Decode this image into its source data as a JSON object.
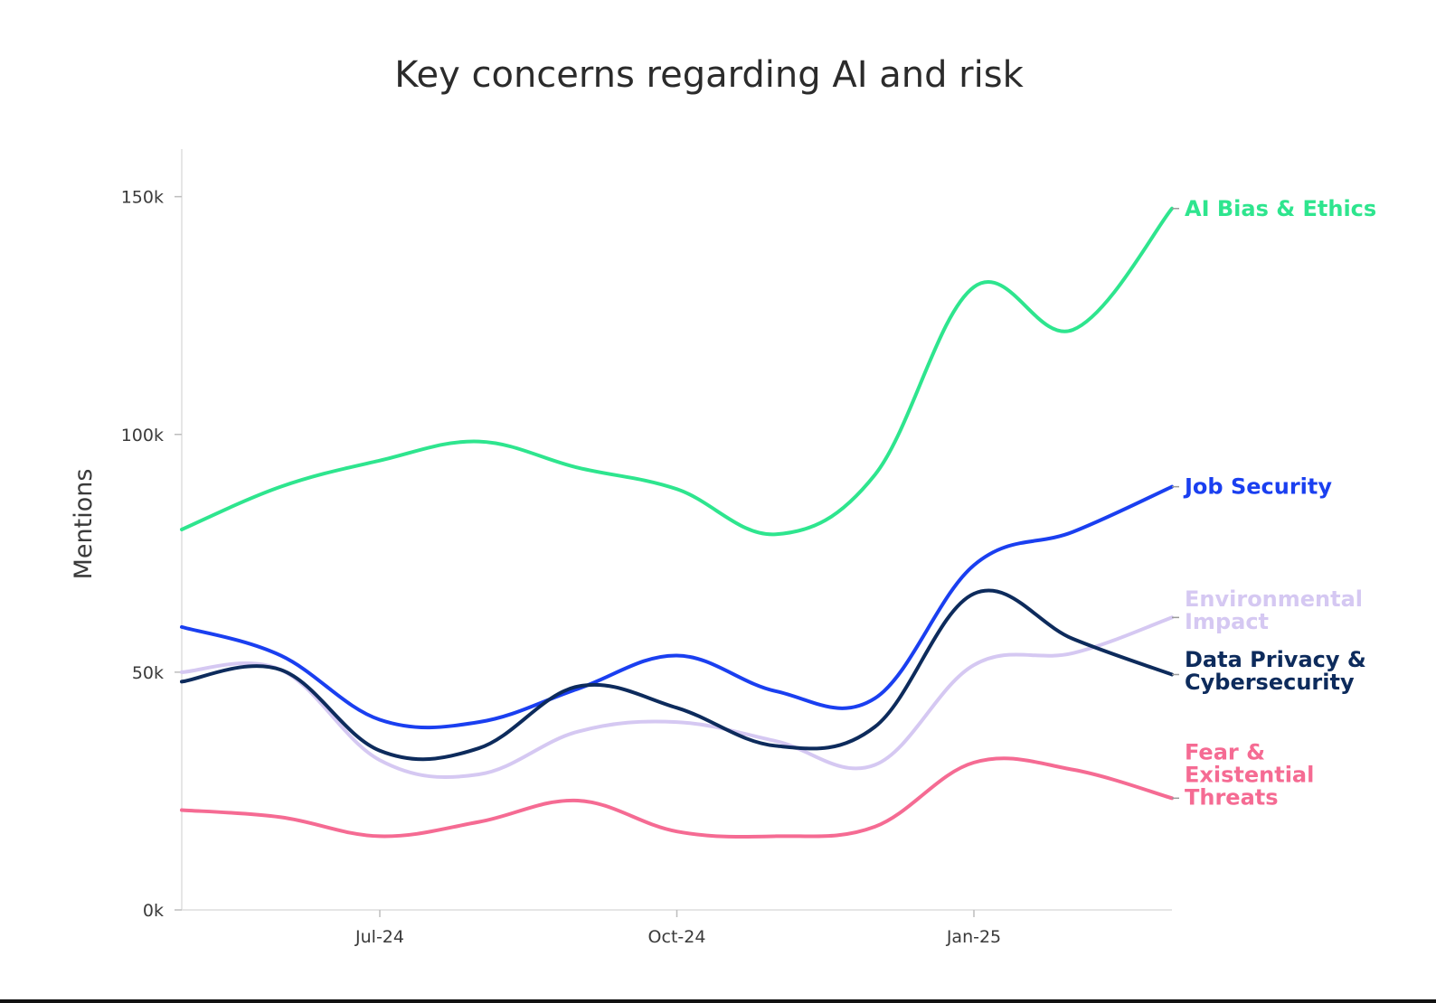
{
  "chart_data": {
    "type": "line",
    "title": "Key concerns regarding AI and risk",
    "xlabel": "",
    "ylabel": "Mentions",
    "ylim": [
      0,
      160000
    ],
    "y_ticks": [
      0,
      50000,
      100000,
      150000
    ],
    "y_tick_labels": [
      "0k",
      "50k",
      "100k",
      "150k"
    ],
    "x": [
      "May-24",
      "Jun-24",
      "Jul-24",
      "Aug-24",
      "Sep-24",
      "Oct-24",
      "Nov-24",
      "Dec-24",
      "Jan-25",
      "Feb-25",
      "Mar-25"
    ],
    "x_ticks": [
      "Jul-24",
      "Oct-24",
      "Jan-25"
    ],
    "grid": false,
    "series": [
      {
        "name": "AI Bias & Ethics",
        "label_lines": [
          "AI Bias & Ethics"
        ],
        "color": "#2ee58e",
        "values": [
          80000,
          89000,
          94500,
          98500,
          93000,
          88500,
          79000,
          91500,
          131000,
          122000,
          147500
        ]
      },
      {
        "name": "Job Security",
        "label_lines": [
          "Job Security"
        ],
        "color": "#1a3ff0",
        "values": [
          59500,
          53500,
          40000,
          39500,
          46500,
          53500,
          46000,
          44500,
          72500,
          79500,
          89000
        ]
      },
      {
        "name": "Environmental Impact",
        "label_lines": [
          "Environmental",
          "Impact"
        ],
        "color": "#d5c8f2",
        "values": [
          50000,
          50500,
          31500,
          28500,
          37500,
          39500,
          35500,
          30500,
          51500,
          54000,
          61500
        ]
      },
      {
        "name": "Data Privacy & Cybersecurity",
        "label_lines": [
          "Data Privacy &",
          "Cybersecurity"
        ],
        "color": "#0d2b5c",
        "values": [
          48000,
          50500,
          33500,
          34000,
          47000,
          42500,
          34500,
          38500,
          66500,
          57000,
          49500
        ]
      },
      {
        "name": "Fear & Existential Threats",
        "label_lines": [
          "Fear &",
          "Existential",
          "Threats"
        ],
        "color": "#f56b93",
        "values": [
          21000,
          19500,
          15500,
          18500,
          23000,
          16500,
          15500,
          17500,
          31000,
          29500,
          23500
        ]
      }
    ]
  }
}
